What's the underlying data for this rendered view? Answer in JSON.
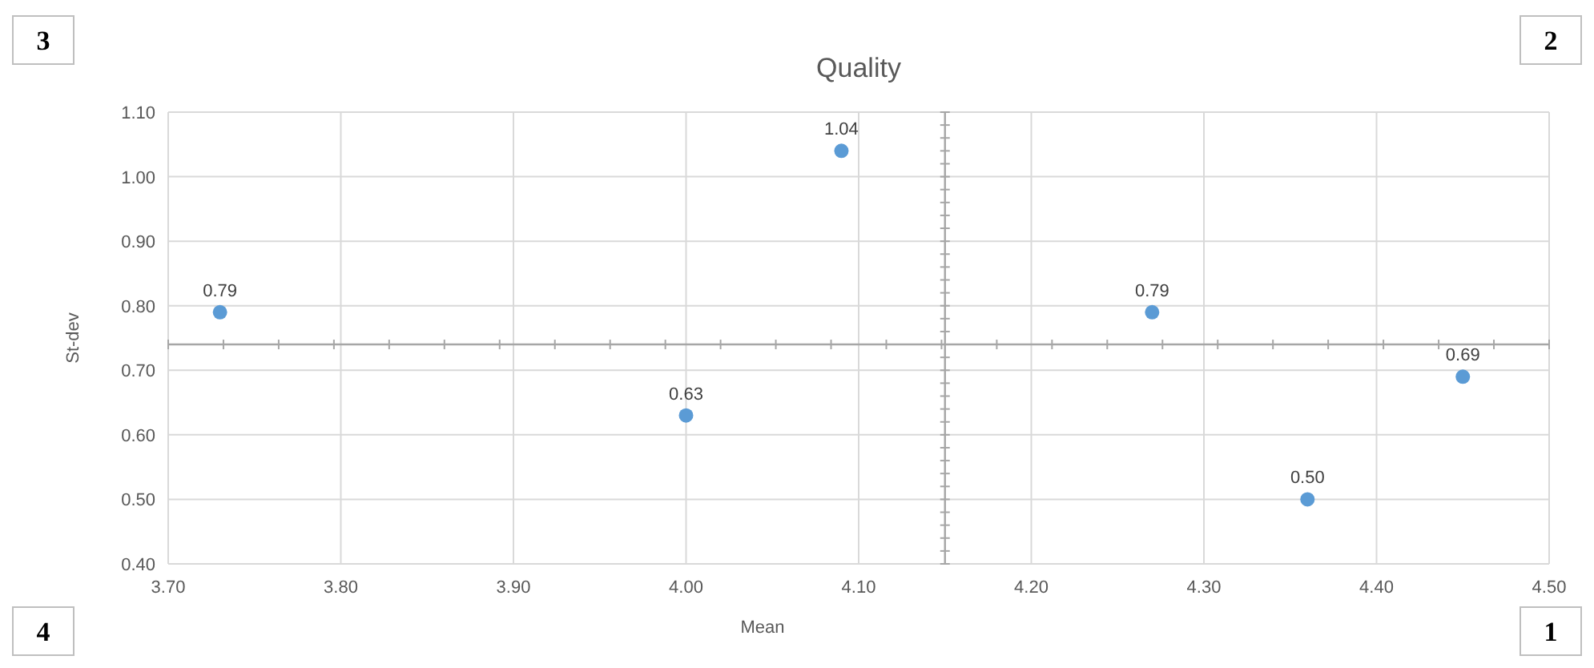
{
  "chart_data": {
    "type": "scatter",
    "title": "Quality",
    "xlabel": "Mean",
    "ylabel": "St-dev",
    "x": [
      3.73,
      4.0,
      4.09,
      4.27,
      4.36,
      4.45
    ],
    "series": [
      {
        "color": "#5b9bd5",
        "values": [
          0.79,
          0.63,
          1.04,
          0.79,
          0.5,
          0.69
        ],
        "value_labels": [
          "0.79",
          "0.63",
          "1.04",
          "0.79",
          "0.50",
          "0.69"
        ]
      }
    ],
    "xlim": [
      3.7,
      4.5
    ],
    "xticks": [
      {
        "value": 3.7,
        "label": "3.70"
      },
      {
        "value": 3.8,
        "label": "3.80"
      },
      {
        "value": 3.9,
        "label": "3.90"
      },
      {
        "value": 4.0,
        "label": "4.00"
      },
      {
        "value": 4.1,
        "label": "4.10"
      },
      {
        "value": 4.2,
        "label": "4.20"
      },
      {
        "value": 4.3,
        "label": "4.30"
      },
      {
        "value": 4.4,
        "label": "4.40"
      },
      {
        "value": 4.5,
        "label": "4.50"
      }
    ],
    "ylim": [
      0.4,
      1.1
    ],
    "yticks": [
      {
        "value": 0.4,
        "label": "0.40"
      },
      {
        "value": 0.5,
        "label": "0.50"
      },
      {
        "value": 0.6,
        "label": "0.60"
      },
      {
        "value": 0.7,
        "label": "0.70"
      },
      {
        "value": 0.8,
        "label": "0.80"
      },
      {
        "value": 0.9,
        "label": "0.90"
      },
      {
        "value": 1.0,
        "label": "1.00"
      },
      {
        "value": 1.1,
        "label": "1.10"
      }
    ],
    "grid": true,
    "marker": "circle",
    "ref_lines": [
      {
        "axis": "x",
        "value": 4.15,
        "color": "#a6a6a6"
      },
      {
        "axis": "y",
        "value": 0.74,
        "color": "#a6a6a6"
      }
    ],
    "annotations": [
      "3",
      "2",
      "4",
      "1"
    ]
  }
}
